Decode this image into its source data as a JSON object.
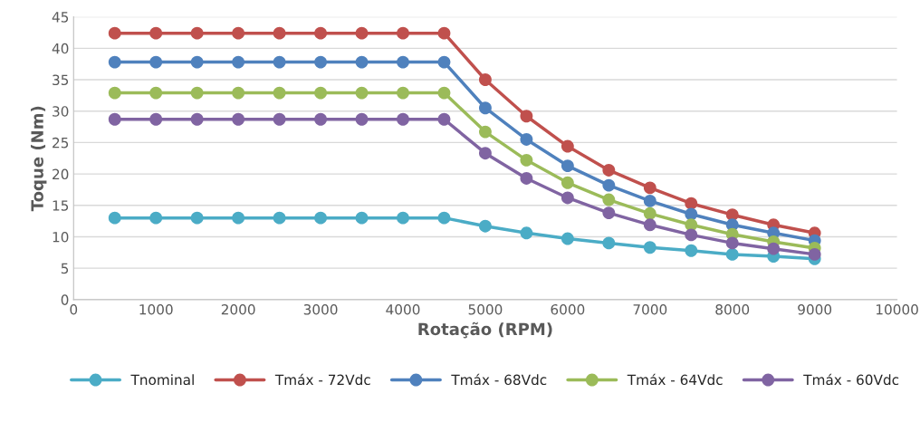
{
  "chart_data": {
    "type": "line",
    "xlabel": "Rotação (RPM)",
    "ylabel": "Toque (Nm)",
    "x": [
      500,
      1000,
      1500,
      2000,
      2500,
      3000,
      3500,
      4000,
      4500,
      5000,
      5500,
      6000,
      6500,
      7000,
      7500,
      8000,
      8500,
      9000
    ],
    "series": [
      {
        "name": "Tnominal",
        "color": "#4bacc6",
        "values": [
          13,
          13,
          13,
          13,
          13,
          13,
          13,
          13,
          13,
          11.7,
          10.6,
          9.7,
          9.0,
          8.3,
          7.8,
          7.2,
          6.9,
          6.5
        ]
      },
      {
        "name": "Tmáx - 72Vdc",
        "color": "#c0504d",
        "values": [
          42.4,
          42.4,
          42.4,
          42.4,
          42.4,
          42.4,
          42.4,
          42.4,
          42.4,
          35.0,
          29.2,
          24.4,
          20.6,
          17.8,
          15.3,
          13.5,
          11.9,
          10.6
        ]
      },
      {
        "name": "Tmáx - 68Vdc",
        "color": "#4f81bd",
        "values": [
          37.8,
          37.8,
          37.8,
          37.8,
          37.8,
          37.8,
          37.8,
          37.8,
          37.8,
          30.5,
          25.5,
          21.3,
          18.2,
          15.7,
          13.6,
          11.9,
          10.6,
          9.4
        ]
      },
      {
        "name": "Tmáx - 64Vdc",
        "color": "#9bbb59",
        "values": [
          32.9,
          32.9,
          32.9,
          32.9,
          32.9,
          32.9,
          32.9,
          32.9,
          32.9,
          26.7,
          22.2,
          18.6,
          15.9,
          13.7,
          11.9,
          10.4,
          9.2,
          8.2
        ]
      },
      {
        "name": "Tmáx - 60Vdc",
        "color": "#8064a2",
        "values": [
          28.7,
          28.7,
          28.7,
          28.7,
          28.7,
          28.7,
          28.7,
          28.7,
          28.7,
          23.3,
          19.3,
          16.2,
          13.8,
          11.9,
          10.3,
          9.0,
          8.1,
          7.2
        ]
      }
    ],
    "xlim": [
      0,
      10000
    ],
    "xticks": [
      0,
      1000,
      2000,
      3000,
      4000,
      5000,
      6000,
      7000,
      8000,
      9000,
      10000
    ],
    "ylim": [
      0,
      45
    ],
    "yticks": [
      0,
      5,
      10,
      15,
      20,
      25,
      30,
      35,
      40,
      45
    ],
    "grid": "y",
    "legend": "bottom",
    "marker": "circle",
    "line_style": "solid"
  }
}
